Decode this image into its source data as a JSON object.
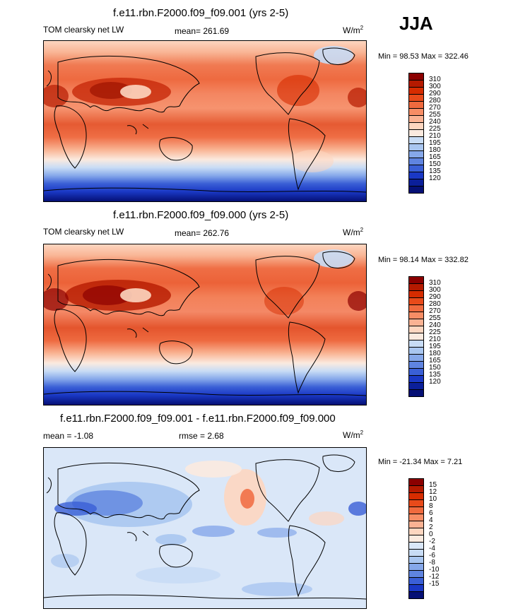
{
  "season": "JJA",
  "panels": [
    {
      "title": "f.e11.rbn.F2000.f09_f09.001 (yrs 2-5)",
      "variable": "TOM clearsky net LW",
      "stat_text": "mean= 261.69",
      "units_base": "W/m",
      "units_exp": "2",
      "minmax": "Min =  98.53 Max = 322.46"
    },
    {
      "title": "f.e11.rbn.F2000.f09_f09.000 (yrs 2-5)",
      "variable": "TOM clearsky net LW",
      "stat_text": "mean= 262.76",
      "units_base": "W/m",
      "units_exp": "2",
      "minmax": "Min =  98.14 Max = 332.82"
    },
    {
      "title": "f.e11.rbn.F2000.f09_f09.001 - f.e11.rbn.F2000.f09_f09.000",
      "variable": "mean =  -1.08",
      "stat_text": "rmse =   2.68",
      "units_base": "W/m",
      "units_exp": "2",
      "minmax": "Min = -21.34 Max =   7.21"
    }
  ],
  "chart_data": [
    {
      "type": "heatmap",
      "title": "f.e11.rbn.F2000.f09_f09.001 (yrs 2-5)",
      "variable": "TOM clearsky net LW",
      "mean": 261.69,
      "min": 98.53,
      "max": 322.46,
      "units": "W/m2",
      "projection": "cylindrical equidistant, Pacific-centered",
      "colorbar_levels": [
        310,
        300,
        290,
        280,
        270,
        255,
        240,
        225,
        210,
        195,
        180,
        165,
        150,
        135,
        120
      ],
      "colorbar_colors": [
        "#8b0000",
        "#b51a00",
        "#d62c00",
        "#e84a1a",
        "#f06a3e",
        "#f78d65",
        "#fab293",
        "#fdd6c0",
        "#fbeadf",
        "#c8dcf5",
        "#a9c6f0",
        "#86a8ea",
        "#5f84e0",
        "#3a5fd6",
        "#1a38c5",
        "#0b1f9a",
        "#051075"
      ],
      "colorbar_label_order": "top-to-bottom"
    },
    {
      "type": "heatmap",
      "title": "f.e11.rbn.F2000.f09_f09.000 (yrs 2-5)",
      "variable": "TOM clearsky net LW",
      "mean": 262.76,
      "min": 98.14,
      "max": 332.82,
      "units": "W/m2",
      "projection": "cylindrical equidistant, Pacific-centered",
      "colorbar_levels": [
        310,
        300,
        290,
        280,
        270,
        255,
        240,
        225,
        210,
        195,
        180,
        165,
        150,
        135,
        120
      ],
      "colorbar_colors": [
        "#8b0000",
        "#b51a00",
        "#d62c00",
        "#e84a1a",
        "#f06a3e",
        "#f78d65",
        "#fab293",
        "#fdd6c0",
        "#fbeadf",
        "#c8dcf5",
        "#a9c6f0",
        "#86a8ea",
        "#5f84e0",
        "#3a5fd6",
        "#1a38c5",
        "#0b1f9a",
        "#051075"
      ],
      "colorbar_label_order": "top-to-bottom"
    },
    {
      "type": "heatmap",
      "title": "f.e11.rbn.F2000.f09_f09.001 - f.e11.rbn.F2000.f09_f09.000",
      "mean": -1.08,
      "rmse": 2.68,
      "min": -21.34,
      "max": 7.21,
      "units": "W/m2",
      "projection": "cylindrical equidistant, Pacific-centered",
      "colorbar_levels": [
        15,
        12,
        10,
        8,
        6,
        4,
        2,
        0,
        -2,
        -4,
        -6,
        -8,
        -10,
        -12,
        -15
      ],
      "colorbar_colors": [
        "#8b0000",
        "#b51a00",
        "#d62c00",
        "#e84a1a",
        "#f06a3e",
        "#f78d65",
        "#fab293",
        "#fdd6c0",
        "#fbeadf",
        "#dae7f8",
        "#c8dcf5",
        "#a9c6f0",
        "#86a8ea",
        "#5f84e0",
        "#3a5fd6",
        "#1a38c5",
        "#051075"
      ],
      "colorbar_label_order": "top-to-bottom"
    }
  ]
}
